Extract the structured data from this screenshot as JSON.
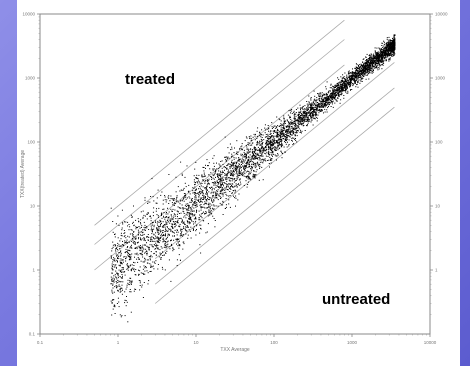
{
  "chart_data": {
    "type": "scatter",
    "title": "",
    "xlabel": "TXX Average",
    "ylabel": "TXX(treated) Average",
    "xscale": "log",
    "yscale": "log",
    "xlim": [
      0.1,
      10000
    ],
    "ylim": [
      0.1,
      10000
    ],
    "x_ticks": [
      "0.1",
      "1",
      "10",
      "100",
      "1000",
      "10000"
    ],
    "y_ticks": [
      "0.1",
      "1",
      "10",
      "100",
      "1000",
      "10000"
    ],
    "right_y_ticks": [
      "10000",
      "1000",
      "100",
      "10",
      "1"
    ],
    "grid": false,
    "guide_lines": [
      {
        "name": "10x-up",
        "fold": 10
      },
      {
        "name": "5x-up",
        "fold": 5
      },
      {
        "name": "2x-up",
        "fold": 2
      },
      {
        "name": "2x-down",
        "fold": 0.5
      },
      {
        "name": "5x-down",
        "fold": 0.2
      },
      {
        "name": "10x-down",
        "fold": 0.1
      }
    ],
    "annotations": [
      {
        "name": "treated",
        "text": "treated"
      },
      {
        "name": "untreated",
        "text": "untreated"
      }
    ],
    "series": [
      {
        "points_description": "dense cloud of several thousand black points along the diagonal",
        "x_range": [
          0.8,
          3500
        ],
        "center_band": [
          [
            1,
            1.5
          ],
          [
            10,
            12
          ],
          [
            100,
            100
          ],
          [
            1000,
            900
          ],
          [
            3000,
            2600
          ]
        ],
        "color": "#000000"
      }
    ]
  },
  "colors": {
    "background_light": "#8f8fe8",
    "background_dark": "#5c5ccf",
    "plot_background": "#ffffff",
    "guide_line": "#aaaaaa",
    "points": "#000000"
  }
}
